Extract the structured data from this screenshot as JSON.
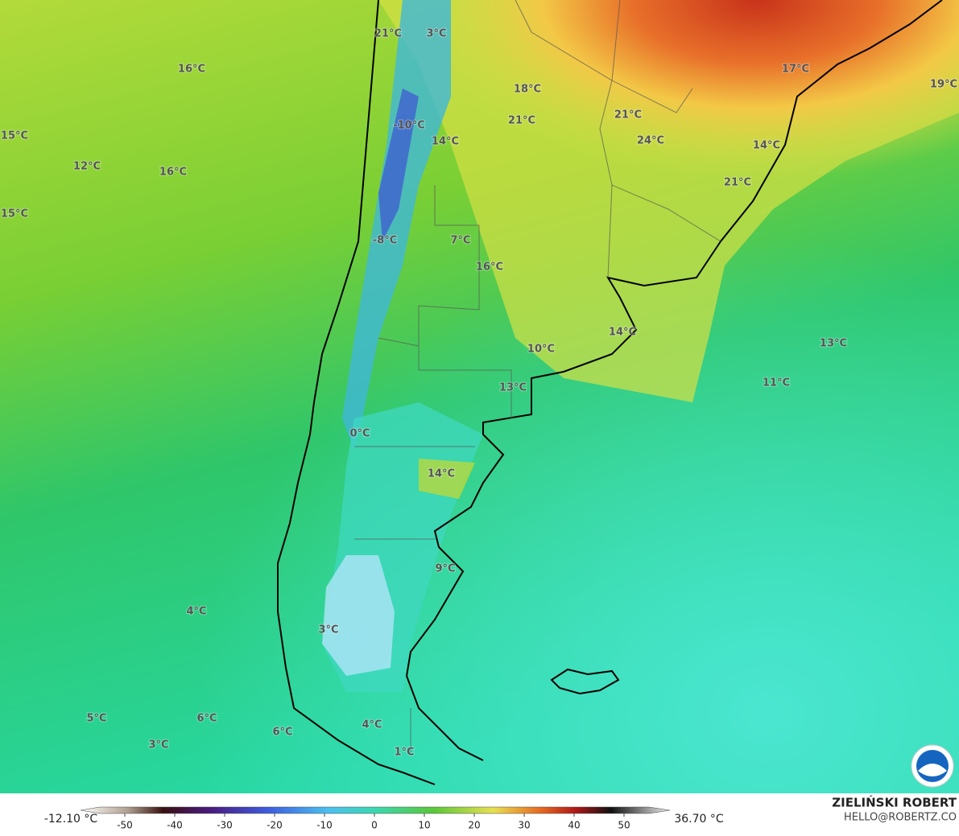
{
  "map": {
    "labels": [
      "21°C",
      "3°C",
      "16°C",
      "18°C",
      "21°C",
      "21°C",
      "17°C",
      "19°C",
      "15°C",
      "-10°C",
      "14°C",
      "24°C",
      "14°C",
      "12°C",
      "16°C",
      "21°C",
      "15°C",
      "-8°C",
      "7°C",
      "16°C",
      "14°C",
      "10°C",
      "13°C",
      "11°C",
      "13°C",
      "0°C",
      "14°C",
      "9°C",
      "4°C",
      "3°C",
      "5°C",
      "6°C",
      "6°C",
      "3°C",
      "4°C",
      "1°C"
    ]
  },
  "colorbar": {
    "min_label": "-12.10 °C",
    "max_label": "36.70 °C",
    "lim": [
      -55,
      55
    ],
    "ticks": [
      -50,
      -40,
      -30,
      -20,
      -10,
      0,
      10,
      20,
      30,
      40,
      50
    ]
  },
  "credits": {
    "author": "ZIELIŃSKI ROBERT",
    "email": "HELLO@ROBERTZ.CO"
  }
}
